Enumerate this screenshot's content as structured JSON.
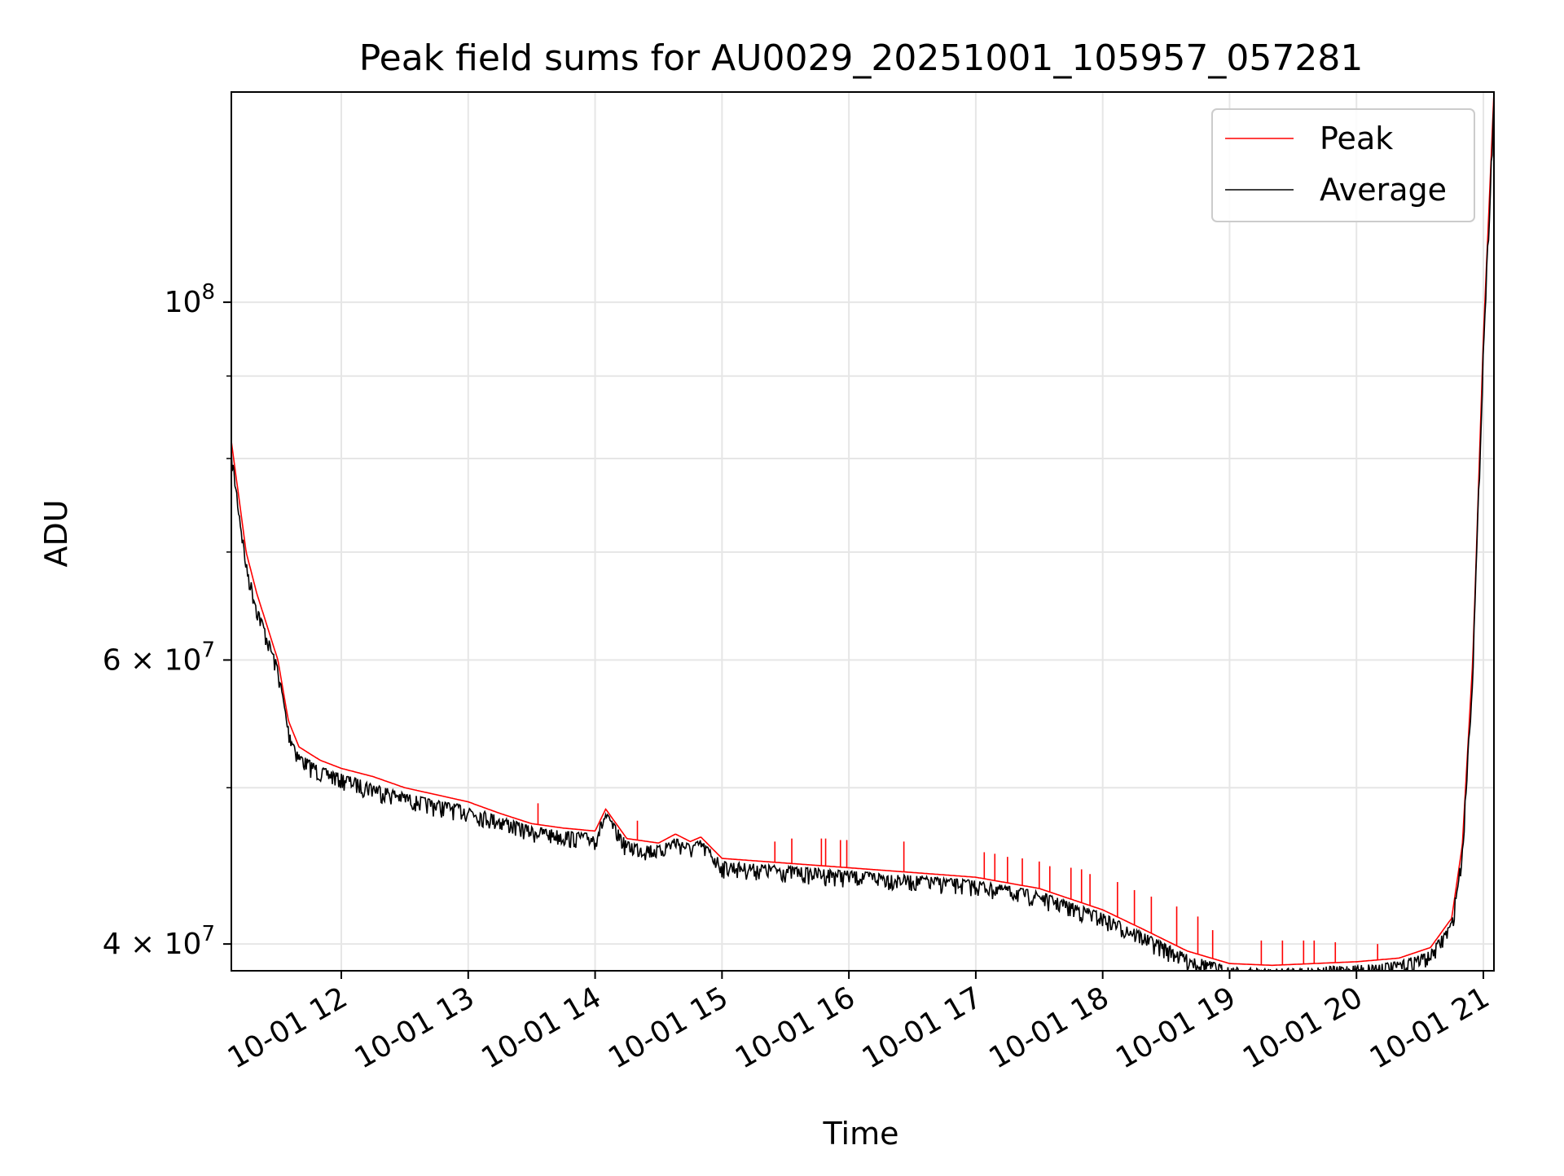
{
  "chart_data": {
    "type": "line",
    "title": "Peak field sums for AU0029_20251001_105957_057281",
    "xlabel": "Time",
    "ylabel": "ADU",
    "y_scale": "log",
    "grid": true,
    "legend_position": "top-right",
    "xlim": [
      "2025-10-01 11:08",
      "2025-10-01 21:05"
    ],
    "ylim": [
      38500000,
      135000000
    ],
    "x_tick_labels": [
      "10-01 12",
      "10-01 13",
      "10-01 14",
      "10-01 15",
      "10-01 16",
      "10-01 17",
      "10-01 18",
      "10-01 19",
      "10-01 20",
      "10-01 21"
    ],
    "x_ticks": [
      "2025-10-01 12:00",
      "2025-10-01 13:00",
      "2025-10-01 14:00",
      "2025-10-01 15:00",
      "2025-10-01 16:00",
      "2025-10-01 17:00",
      "2025-10-01 18:00",
      "2025-10-01 19:00",
      "2025-10-01 20:00",
      "2025-10-01 21:00"
    ],
    "y_ticks": [
      {
        "value": 100000000,
        "base": "10",
        "exp": "8"
      },
      {
        "value": 60000000,
        "base": "6 × 10",
        "exp": "7"
      },
      {
        "value": 40000000,
        "base": "4 × 10",
        "exp": "7"
      }
    ],
    "y_minor_ticks": [
      50000000,
      70000000,
      80000000,
      90000000
    ],
    "series": [
      {
        "name": "Peak",
        "color": "#ff0000",
        "x": [
          "2025-10-01 11:08",
          "2025-10-01 11:15",
          "2025-10-01 11:20",
          "2025-10-01 11:30",
          "2025-10-01 11:35",
          "2025-10-01 11:40",
          "2025-10-01 11:50",
          "2025-10-01 12:00",
          "2025-10-01 12:15",
          "2025-10-01 12:30",
          "2025-10-01 12:45",
          "2025-10-01 13:00",
          "2025-10-01 13:15",
          "2025-10-01 13:30",
          "2025-10-01 13:45",
          "2025-10-01 14:00",
          "2025-10-01 14:05",
          "2025-10-01 14:15",
          "2025-10-01 14:30",
          "2025-10-01 14:38",
          "2025-10-01 14:45",
          "2025-10-01 14:50",
          "2025-10-01 15:00",
          "2025-10-01 15:30",
          "2025-10-01 16:00",
          "2025-10-01 16:30",
          "2025-10-01 17:00",
          "2025-10-01 17:30",
          "2025-10-01 18:00",
          "2025-10-01 18:20",
          "2025-10-01 18:40",
          "2025-10-01 19:00",
          "2025-10-01 19:20",
          "2025-10-01 19:40",
          "2025-10-01 20:00",
          "2025-10-01 20:20",
          "2025-10-01 20:35",
          "2025-10-01 20:45",
          "2025-10-01 20:50",
          "2025-10-01 20:55",
          "2025-10-01 21:00",
          "2025-10-01 21:05"
        ],
        "y": [
          82000000,
          70000000,
          66000000,
          60000000,
          55000000,
          53000000,
          52000000,
          51400000,
          50800000,
          50000000,
          49500000,
          49000000,
          48200000,
          47500000,
          47200000,
          47000000,
          48500000,
          46500000,
          46200000,
          46800000,
          46300000,
          46600000,
          45200000,
          44900000,
          44600000,
          44300000,
          44000000,
          43300000,
          42000000,
          40800000,
          39600000,
          38900000,
          38800000,
          38900000,
          39000000,
          39200000,
          39800000,
          41500000,
          46000000,
          60000000,
          95000000,
          135000000
        ],
        "spikes": [
          {
            "x": "2025-10-01 13:33",
            "y": 48900000
          },
          {
            "x": "2025-10-01 14:20",
            "y": 47700000
          },
          {
            "x": "2025-10-01 15:25",
            "y": 46300000
          },
          {
            "x": "2025-10-01 15:33",
            "y": 46500000
          },
          {
            "x": "2025-10-01 15:47",
            "y": 46500000
          },
          {
            "x": "2025-10-01 15:49",
            "y": 46500000
          },
          {
            "x": "2025-10-01 15:56",
            "y": 46400000
          },
          {
            "x": "2025-10-01 15:59",
            "y": 46400000
          },
          {
            "x": "2025-10-01 16:26",
            "y": 46300000
          },
          {
            "x": "2025-10-01 17:04",
            "y": 45600000
          },
          {
            "x": "2025-10-01 17:09",
            "y": 45500000
          },
          {
            "x": "2025-10-01 17:15",
            "y": 45300000
          },
          {
            "x": "2025-10-01 17:22",
            "y": 45200000
          },
          {
            "x": "2025-10-01 17:30",
            "y": 45000000
          },
          {
            "x": "2025-10-01 17:35",
            "y": 44700000
          },
          {
            "x": "2025-10-01 17:45",
            "y": 44600000
          },
          {
            "x": "2025-10-01 17:50",
            "y": 44500000
          },
          {
            "x": "2025-10-01 17:54",
            "y": 44200000
          },
          {
            "x": "2025-10-01 18:07",
            "y": 43700000
          },
          {
            "x": "2025-10-01 18:15",
            "y": 43200000
          },
          {
            "x": "2025-10-01 18:23",
            "y": 42800000
          },
          {
            "x": "2025-10-01 18:35",
            "y": 42200000
          },
          {
            "x": "2025-10-01 18:45",
            "y": 41600000
          },
          {
            "x": "2025-10-01 18:52",
            "y": 40800000
          },
          {
            "x": "2025-10-01 19:15",
            "y": 40200000
          },
          {
            "x": "2025-10-01 19:25",
            "y": 40200000
          },
          {
            "x": "2025-10-01 19:35",
            "y": 40200000
          },
          {
            "x": "2025-10-01 19:40",
            "y": 40200000
          },
          {
            "x": "2025-10-01 19:50",
            "y": 40100000
          },
          {
            "x": "2025-10-01 20:10",
            "y": 40000000
          },
          {
            "x": "2025-10-01 20:50",
            "y": 46000000
          }
        ]
      },
      {
        "name": "Average",
        "color": "#000000",
        "x": [
          "2025-10-01 11:08",
          "2025-10-01 11:15",
          "2025-10-01 11:20",
          "2025-10-01 11:30",
          "2025-10-01 11:35",
          "2025-10-01 11:40",
          "2025-10-01 11:50",
          "2025-10-01 12:00",
          "2025-10-01 12:15",
          "2025-10-01 12:30",
          "2025-10-01 12:45",
          "2025-10-01 13:00",
          "2025-10-01 13:15",
          "2025-10-01 13:30",
          "2025-10-01 13:45",
          "2025-10-01 14:00",
          "2025-10-01 14:05",
          "2025-10-01 14:15",
          "2025-10-01 14:30",
          "2025-10-01 14:38",
          "2025-10-01 14:45",
          "2025-10-01 14:50",
          "2025-10-01 15:00",
          "2025-10-01 15:30",
          "2025-10-01 16:00",
          "2025-10-01 16:30",
          "2025-10-01 17:00",
          "2025-10-01 17:30",
          "2025-10-01 18:00",
          "2025-10-01 18:20",
          "2025-10-01 18:40",
          "2025-10-01 19:00",
          "2025-10-01 19:20",
          "2025-10-01 19:40",
          "2025-10-01 20:00",
          "2025-10-01 20:20",
          "2025-10-01 20:35",
          "2025-10-01 20:45",
          "2025-10-01 20:50",
          "2025-10-01 20:55",
          "2025-10-01 21:00",
          "2025-10-01 21:05"
        ],
        "y": [
          81000000,
          69000000,
          65000000,
          59500000,
          54500000,
          52500000,
          51500000,
          51000000,
          50300000,
          49600000,
          49100000,
          48700000,
          48000000,
          47300000,
          47000000,
          46800000,
          48300000,
          46300000,
          46000000,
          46600000,
          46100000,
          46400000,
          45000000,
          44700000,
          44400000,
          44100000,
          43800000,
          43100000,
          41800000,
          40600000,
          39400000,
          38700000,
          38600000,
          38700000,
          38800000,
          39000000,
          39600000,
          41300000,
          45700000,
          59500000,
          94000000,
          134000000
        ],
        "noise_amplitude": 0.012
      }
    ]
  }
}
